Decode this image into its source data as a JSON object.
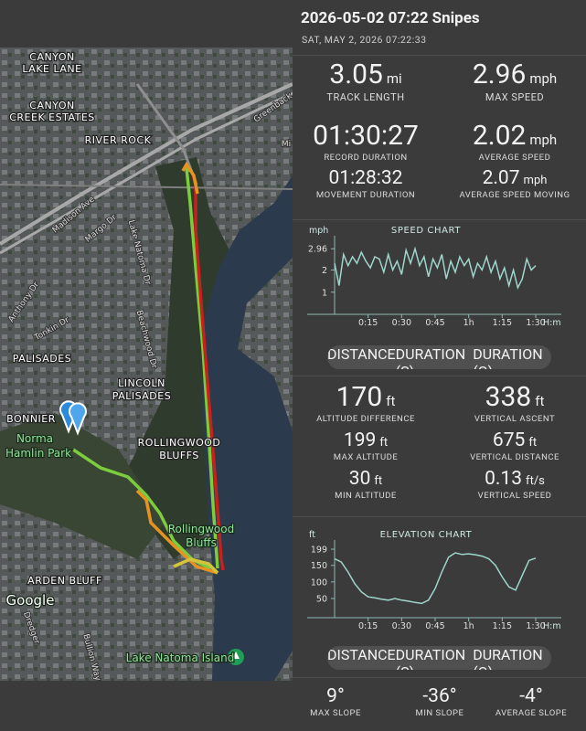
{
  "header": {
    "title": "2026-05-02 07:22 Snipes",
    "subtitle": "SAT, MAY 2, 2026 07:22:33"
  },
  "map": {
    "labels": [
      "CANYON",
      "LAKE LANE",
      "CANYON",
      "CREEK ESTATES",
      "RIVER ROCK",
      "PALISADES",
      "LINCOLN",
      "PALISADES",
      "BONNIER",
      "ROLLINGWOOD",
      "BLUFFS",
      "ARDEN BLUFF"
    ],
    "places": [
      "Norma",
      "Hamlin Park",
      "Rollingwood",
      "Bluffs",
      "Lake Natoma Island",
      "Google"
    ],
    "streets": [
      "Madison Ave",
      "Margo Dr",
      "Lake Natoma Dr",
      "Anthony Dr",
      "Tonkin Dr",
      "Beachwood Dr",
      "Greenback",
      "Dredger",
      "Bullion Way",
      "Mi"
    ]
  },
  "stats_motion": [
    {
      "value": 3.05,
      "unit": "mi",
      "label": "TRACK LENGTH"
    },
    {
      "value": 2.96,
      "unit": "mph",
      "label": "MAX SPEED"
    },
    {
      "value": "01:30:27",
      "label": "RECORD DURATION"
    },
    {
      "value": 2.02,
      "unit": "mph",
      "label": "AVERAGE SPEED"
    },
    {
      "value": "01:28:32",
      "label": "MOVEMENT DURATION"
    },
    {
      "value": 2.07,
      "unit": "mph",
      "label": "AVERAGE SPEED MOVING"
    }
  ],
  "speed_chart": {
    "type": "line",
    "title": "SPEED CHART",
    "y_label": "mph",
    "x_label": "H:m",
    "color": "#9fd6cc",
    "x": [
      0,
      2,
      4,
      6,
      8,
      10,
      12,
      14,
      16,
      18,
      20,
      22,
      24,
      26,
      28,
      30,
      32,
      34,
      36,
      38,
      40,
      42,
      44,
      46,
      48,
      50,
      52,
      54,
      56,
      58,
      60,
      62,
      64,
      66,
      68,
      70,
      72,
      74,
      76,
      78,
      80,
      82,
      84,
      86,
      88,
      90
    ],
    "values": [
      2.3,
      1.3,
      2.7,
      2.2,
      2.6,
      2.3,
      2.8,
      2.4,
      2.1,
      2.6,
      2.5,
      1.9,
      2.7,
      2.0,
      2.4,
      1.8,
      2.9,
      2.3,
      2.96,
      2.2,
      2.6,
      1.7,
      2.5,
      2.1,
      2.7,
      1.6,
      2.4,
      1.9,
      2.6,
      2.2,
      2.5,
      1.7,
      2.3,
      2.0,
      2.6,
      1.9,
      2.4,
      1.6,
      2.1,
      1.3,
      2.0,
      1.2,
      1.6,
      2.5,
      2.0,
      2.2
    ],
    "xlim": [
      0,
      90
    ],
    "ylim": [
      0,
      3.3
    ],
    "xticks": [
      {
        "value": 15,
        "label": "0:15"
      },
      {
        "value": 30,
        "label": "0:30"
      },
      {
        "value": 45,
        "label": "0:45"
      },
      {
        "value": 60,
        "label": "1h"
      },
      {
        "value": 75,
        "label": "1:15"
      },
      {
        "value": 90,
        "label": "1:30"
      }
    ],
    "yticks": [
      2.96,
      2,
      1
    ]
  },
  "speed_toggle": {
    "options": [
      "DISTANCE",
      "DURATION (S)",
      "DURATION (O)"
    ],
    "selected": 1
  },
  "stats_altitude": [
    {
      "value": 170,
      "unit": "ft",
      "label": "ALTITUDE DIFFERENCE"
    },
    {
      "value": 338,
      "unit": "ft",
      "label": "VERTICAL ASCENT"
    },
    {
      "value": 199,
      "unit": "ft",
      "label": "MAX ALTITUDE"
    },
    {
      "value": 675,
      "unit": "ft",
      "label": "VERTICAL DISTANCE"
    },
    {
      "value": 30,
      "unit": "ft",
      "label": "MIN ALTITUDE"
    },
    {
      "value": 0.13,
      "unit": "ft/s",
      "label": "VERTICAL SPEED"
    }
  ],
  "elevation_chart": {
    "type": "line",
    "title": "ELEVATION CHART",
    "y_label": "ft",
    "x_label": "H:m",
    "color": "#9fd6cc",
    "x": [
      0,
      3,
      6,
      9,
      12,
      15,
      18,
      21,
      24,
      27,
      30,
      33,
      36,
      39,
      42,
      45,
      48,
      51,
      54,
      57,
      60,
      63,
      66,
      69,
      72,
      75,
      78,
      81,
      84,
      87,
      90
    ],
    "values": [
      170,
      160,
      130,
      95,
      70,
      55,
      52,
      48,
      45,
      50,
      45,
      42,
      38,
      35,
      45,
      80,
      130,
      175,
      188,
      183,
      185,
      182,
      178,
      170,
      150,
      115,
      85,
      75,
      120,
      165,
      172
    ],
    "xlim": [
      0,
      90
    ],
    "ylim": [
      -8,
      210
    ],
    "xticks": [
      {
        "value": 15,
        "label": "0:15"
      },
      {
        "value": 30,
        "label": "0:30"
      },
      {
        "value": 45,
        "label": "0:45"
      },
      {
        "value": 60,
        "label": "1h"
      },
      {
        "value": 75,
        "label": "1:15"
      },
      {
        "value": 90,
        "label": "1:30"
      }
    ],
    "yticks": [
      199,
      150,
      100,
      50
    ]
  },
  "elevation_toggle": {
    "options": [
      "DISTANCE",
      "DURATION (S)",
      "DURATION (O)"
    ],
    "selected": 1
  },
  "stats_slope": [
    {
      "value": 9,
      "unit": "°",
      "label": "MAX SLOPE"
    },
    {
      "value": -36,
      "unit": "°",
      "label": "MIN SLOPE"
    },
    {
      "value": -4,
      "unit": "°",
      "label": "AVERAGE SLOPE"
    }
  ]
}
